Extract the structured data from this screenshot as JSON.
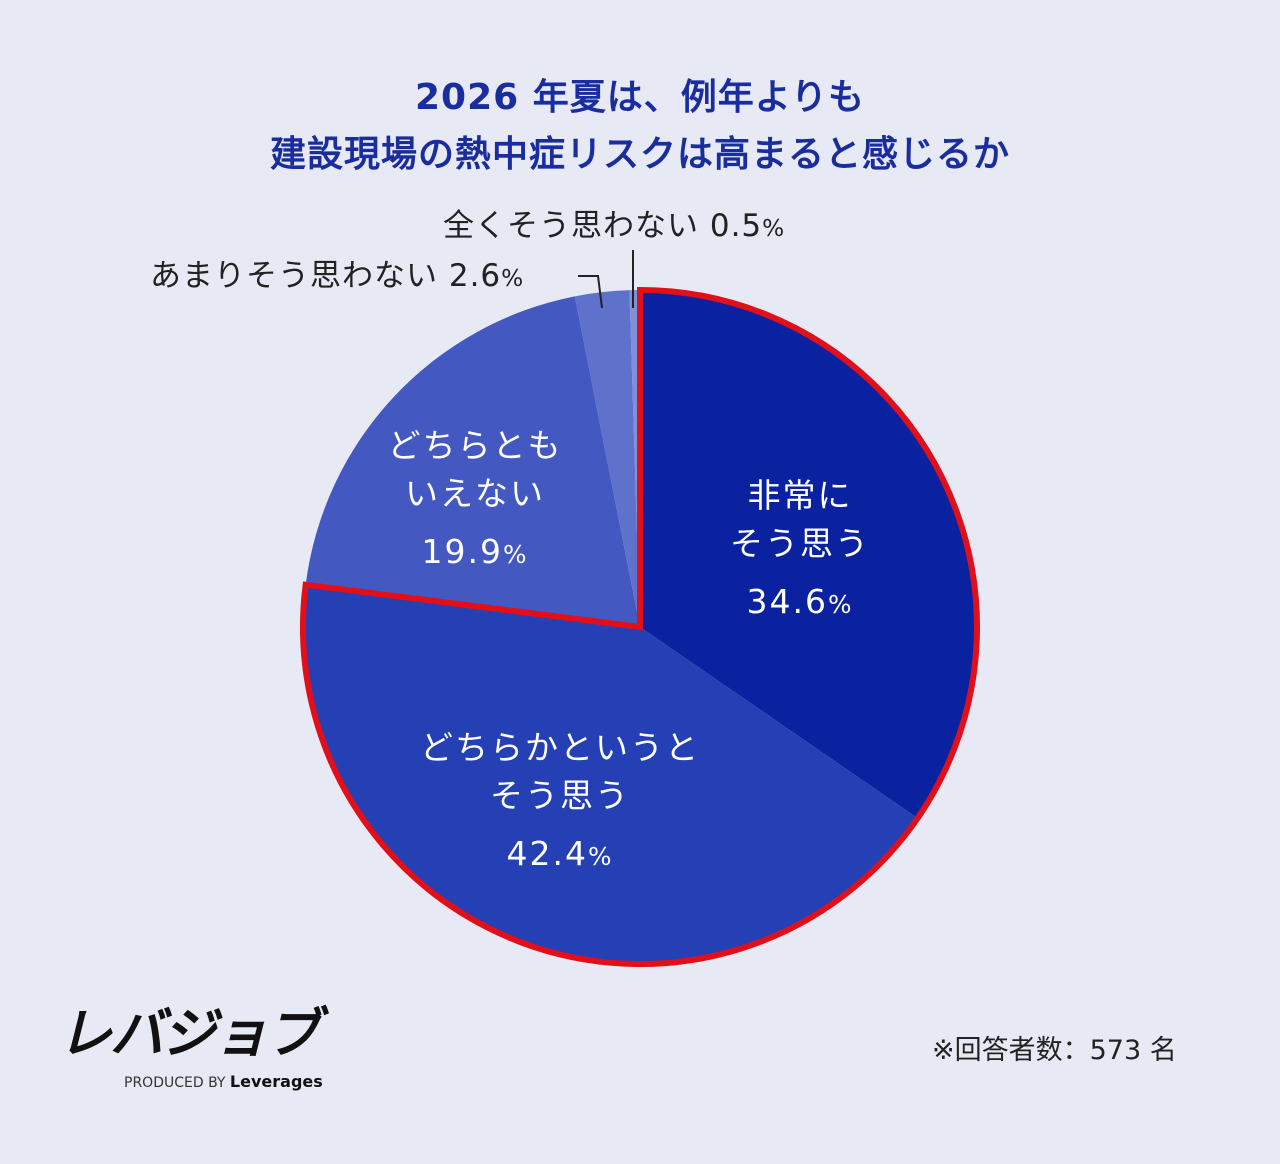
{
  "chart_data": {
    "type": "pie",
    "title_lines": [
      "2026 年夏は、例年よりも",
      "建設現場の熱中症リスクは高まると感じるか"
    ],
    "slices": [
      {
        "label": "非常にそう思う",
        "label_lines": [
          "非常に",
          "そう思う"
        ],
        "value": 34.6,
        "value_text": "34.6",
        "color": "#0b22a0",
        "highlight": true
      },
      {
        "label": "どちらかというとそう思う",
        "label_lines": [
          "どちらかというと",
          "そう思う"
        ],
        "value": 42.4,
        "value_text": "42.4",
        "color": "#2440b4",
        "highlight": true
      },
      {
        "label": "どちらともいえない",
        "label_lines": [
          "どちらとも",
          "いえない"
        ],
        "value": 19.9,
        "value_text": "19.9",
        "color": "#4358c0",
        "highlight": false
      },
      {
        "label": "あまりそう思わない",
        "value": 2.6,
        "value_text": "2.6",
        "color": "#5e72cc",
        "highlight": false
      },
      {
        "label": "全くそう思わない",
        "value": 0.5,
        "value_text": "0.5",
        "color": "#8090d8",
        "highlight": false
      }
    ],
    "percent_sign": "%",
    "highlight_color": "#e10f1a",
    "start": "top, clockwise"
  },
  "footer": {
    "logo": "レバジョブ",
    "produced_by": "PRODUCED BY",
    "company": "Leverages",
    "note": "※回答者数：573 名"
  }
}
